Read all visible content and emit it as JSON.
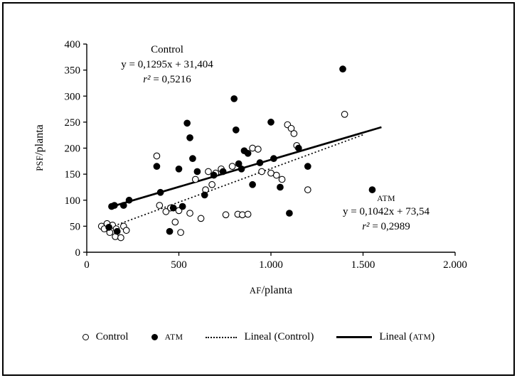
{
  "chart_data": {
    "type": "scatter",
    "title": "",
    "xlabel": "AF/planta",
    "xlabel_sc": "AF",
    "xlabel_rest": "/planta",
    "ylabel": "PSF/planta",
    "ylabel_sc": "PSF",
    "ylabel_rest": "/planta",
    "xlim": [
      0,
      2000
    ],
    "ylim": [
      0,
      400
    ],
    "grid": false,
    "legend_position": "bottom",
    "x_tick_values": [
      0,
      500,
      1000,
      1500,
      2000
    ],
    "x_tick_labels": [
      "0",
      "500",
      "1.000",
      "1.500",
      "2.000"
    ],
    "y_tick_values": [
      0,
      50,
      100,
      150,
      200,
      250,
      300,
      350,
      400
    ],
    "y_tick_labels": [
      "0",
      "50",
      "100",
      "150",
      "200",
      "250",
      "300",
      "350",
      "400"
    ],
    "series": [
      {
        "name": "Control",
        "marker": "open-circle",
        "points": [
          [
            80,
            50
          ],
          [
            95,
            45
          ],
          [
            110,
            55
          ],
          [
            125,
            38
          ],
          [
            140,
            52
          ],
          [
            155,
            30
          ],
          [
            160,
            45
          ],
          [
            185,
            28
          ],
          [
            200,
            50
          ],
          [
            215,
            42
          ],
          [
            380,
            185
          ],
          [
            395,
            90
          ],
          [
            430,
            78
          ],
          [
            455,
            85
          ],
          [
            480,
            58
          ],
          [
            500,
            80
          ],
          [
            510,
            38
          ],
          [
            560,
            75
          ],
          [
            590,
            140
          ],
          [
            620,
            65
          ],
          [
            645,
            120
          ],
          [
            660,
            155
          ],
          [
            680,
            130
          ],
          [
            700,
            152
          ],
          [
            730,
            160
          ],
          [
            755,
            72
          ],
          [
            790,
            165
          ],
          [
            820,
            73
          ],
          [
            845,
            72
          ],
          [
            875,
            73
          ],
          [
            900,
            200
          ],
          [
            930,
            198
          ],
          [
            950,
            155
          ],
          [
            1000,
            152
          ],
          [
            1030,
            148
          ],
          [
            1060,
            140
          ],
          [
            1090,
            245
          ],
          [
            1110,
            238
          ],
          [
            1125,
            228
          ],
          [
            1140,
            205
          ],
          [
            1200,
            120
          ],
          [
            1400,
            265
          ]
        ]
      },
      {
        "name": "ATM",
        "marker": "filled-circle",
        "points": [
          [
            120,
            48
          ],
          [
            135,
            88
          ],
          [
            150,
            90
          ],
          [
            165,
            40
          ],
          [
            200,
            90
          ],
          [
            230,
            100
          ],
          [
            380,
            165
          ],
          [
            400,
            115
          ],
          [
            450,
            40
          ],
          [
            470,
            85
          ],
          [
            500,
            160
          ],
          [
            520,
            88
          ],
          [
            545,
            248
          ],
          [
            560,
            220
          ],
          [
            575,
            180
          ],
          [
            600,
            155
          ],
          [
            640,
            110
          ],
          [
            690,
            148
          ],
          [
            740,
            155
          ],
          [
            800,
            295
          ],
          [
            810,
            235
          ],
          [
            825,
            170
          ],
          [
            840,
            160
          ],
          [
            855,
            195
          ],
          [
            875,
            190
          ],
          [
            900,
            130
          ],
          [
            940,
            172
          ],
          [
            1000,
            250
          ],
          [
            1015,
            180
          ],
          [
            1050,
            125
          ],
          [
            1100,
            75
          ],
          [
            1150,
            200
          ],
          [
            1200,
            165
          ],
          [
            1390,
            352
          ],
          [
            1550,
            120
          ]
        ]
      }
    ],
    "trendlines": [
      {
        "name": "Lineal (Control)",
        "style": "dotted",
        "equation": "y = 0,1295x + 31,404",
        "r_squared": "0,5216",
        "slope": 0.1295,
        "intercept": 31.404,
        "x_range": [
          150,
          1500
        ]
      },
      {
        "name": "Lineal (ATM)",
        "style": "solid",
        "equation": "y = 0,1042x + 73,54",
        "r_squared": "0,2989",
        "slope": 0.1042,
        "intercept": 73.54,
        "x_range": [
          130,
          1600
        ]
      }
    ],
    "annotations": {
      "control": {
        "title": "Control",
        "equation": "y = 0,1295x + 31,404",
        "r2_label": "r²",
        "r2_value": "= 0,5216"
      },
      "atm": {
        "title": "ATM",
        "equation": "y = 0,1042x + 73,54",
        "r2_label": "r²",
        "r2_value": "= 0,2989"
      }
    },
    "legend": [
      {
        "label": "Control",
        "marker": "open-circle"
      },
      {
        "label": "ATM",
        "marker": "filled-circle"
      },
      {
        "label": "Lineal (Control)",
        "marker": "dotted-line"
      },
      {
        "label": "Lineal (ATM)",
        "label_prefix": "Lineal (",
        "label_sc": "ATM",
        "label_suffix": ")",
        "marker": "solid-line"
      }
    ],
    "colors": {
      "marker": "#000000",
      "line": "#000000",
      "background": "#ffffff"
    }
  }
}
